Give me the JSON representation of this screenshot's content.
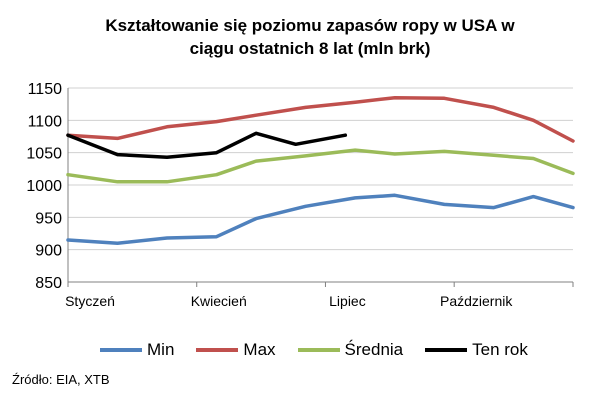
{
  "chart_data": {
    "type": "line",
    "title_line1": "Kształtowanie się poziomu zapasów ropy w USA w",
    "title_line2": "ciągu ostatnich 8 lat (mln brk)",
    "x_labels": [
      "Styczeń",
      "Kwiecień",
      "Lipiec",
      "Październik"
    ],
    "x_label_positions": [
      0,
      13,
      26,
      39
    ],
    "x_count": 51,
    "ylim": [
      850,
      1150
    ],
    "y_ticks": [
      850,
      900,
      950,
      1000,
      1050,
      1100,
      1150
    ],
    "grid": "horizontal",
    "legend_position": "bottom",
    "series": [
      {
        "name": "Min",
        "color": "#4f81bd",
        "x": [
          0,
          5,
          10,
          15,
          19,
          24,
          29,
          33,
          38,
          43,
          47,
          51
        ],
        "values": [
          915,
          910,
          918,
          920,
          948,
          967,
          980,
          984,
          970,
          965,
          982,
          965
        ]
      },
      {
        "name": "Max",
        "color": "#c0504d",
        "x": [
          0,
          5,
          10,
          15,
          19,
          24,
          29,
          33,
          38,
          43,
          47,
          51
        ],
        "values": [
          1077,
          1072,
          1090,
          1098,
          1108,
          1120,
          1128,
          1135,
          1134,
          1120,
          1100,
          1068
        ]
      },
      {
        "name": "Średnia",
        "color": "#9bbb59",
        "x": [
          0,
          5,
          10,
          15,
          19,
          24,
          29,
          33,
          38,
          43,
          47,
          51
        ],
        "values": [
          1016,
          1005,
          1005,
          1016,
          1037,
          1045,
          1054,
          1048,
          1052,
          1046,
          1041,
          1018
        ]
      },
      {
        "name": "Ten rok",
        "color": "#000000",
        "x": [
          0,
          5,
          10,
          15,
          19,
          23,
          28
        ],
        "values": [
          1077,
          1047,
          1043,
          1050,
          1080,
          1063,
          1077
        ]
      }
    ]
  },
  "source": "Źródło: EIA, XTB"
}
